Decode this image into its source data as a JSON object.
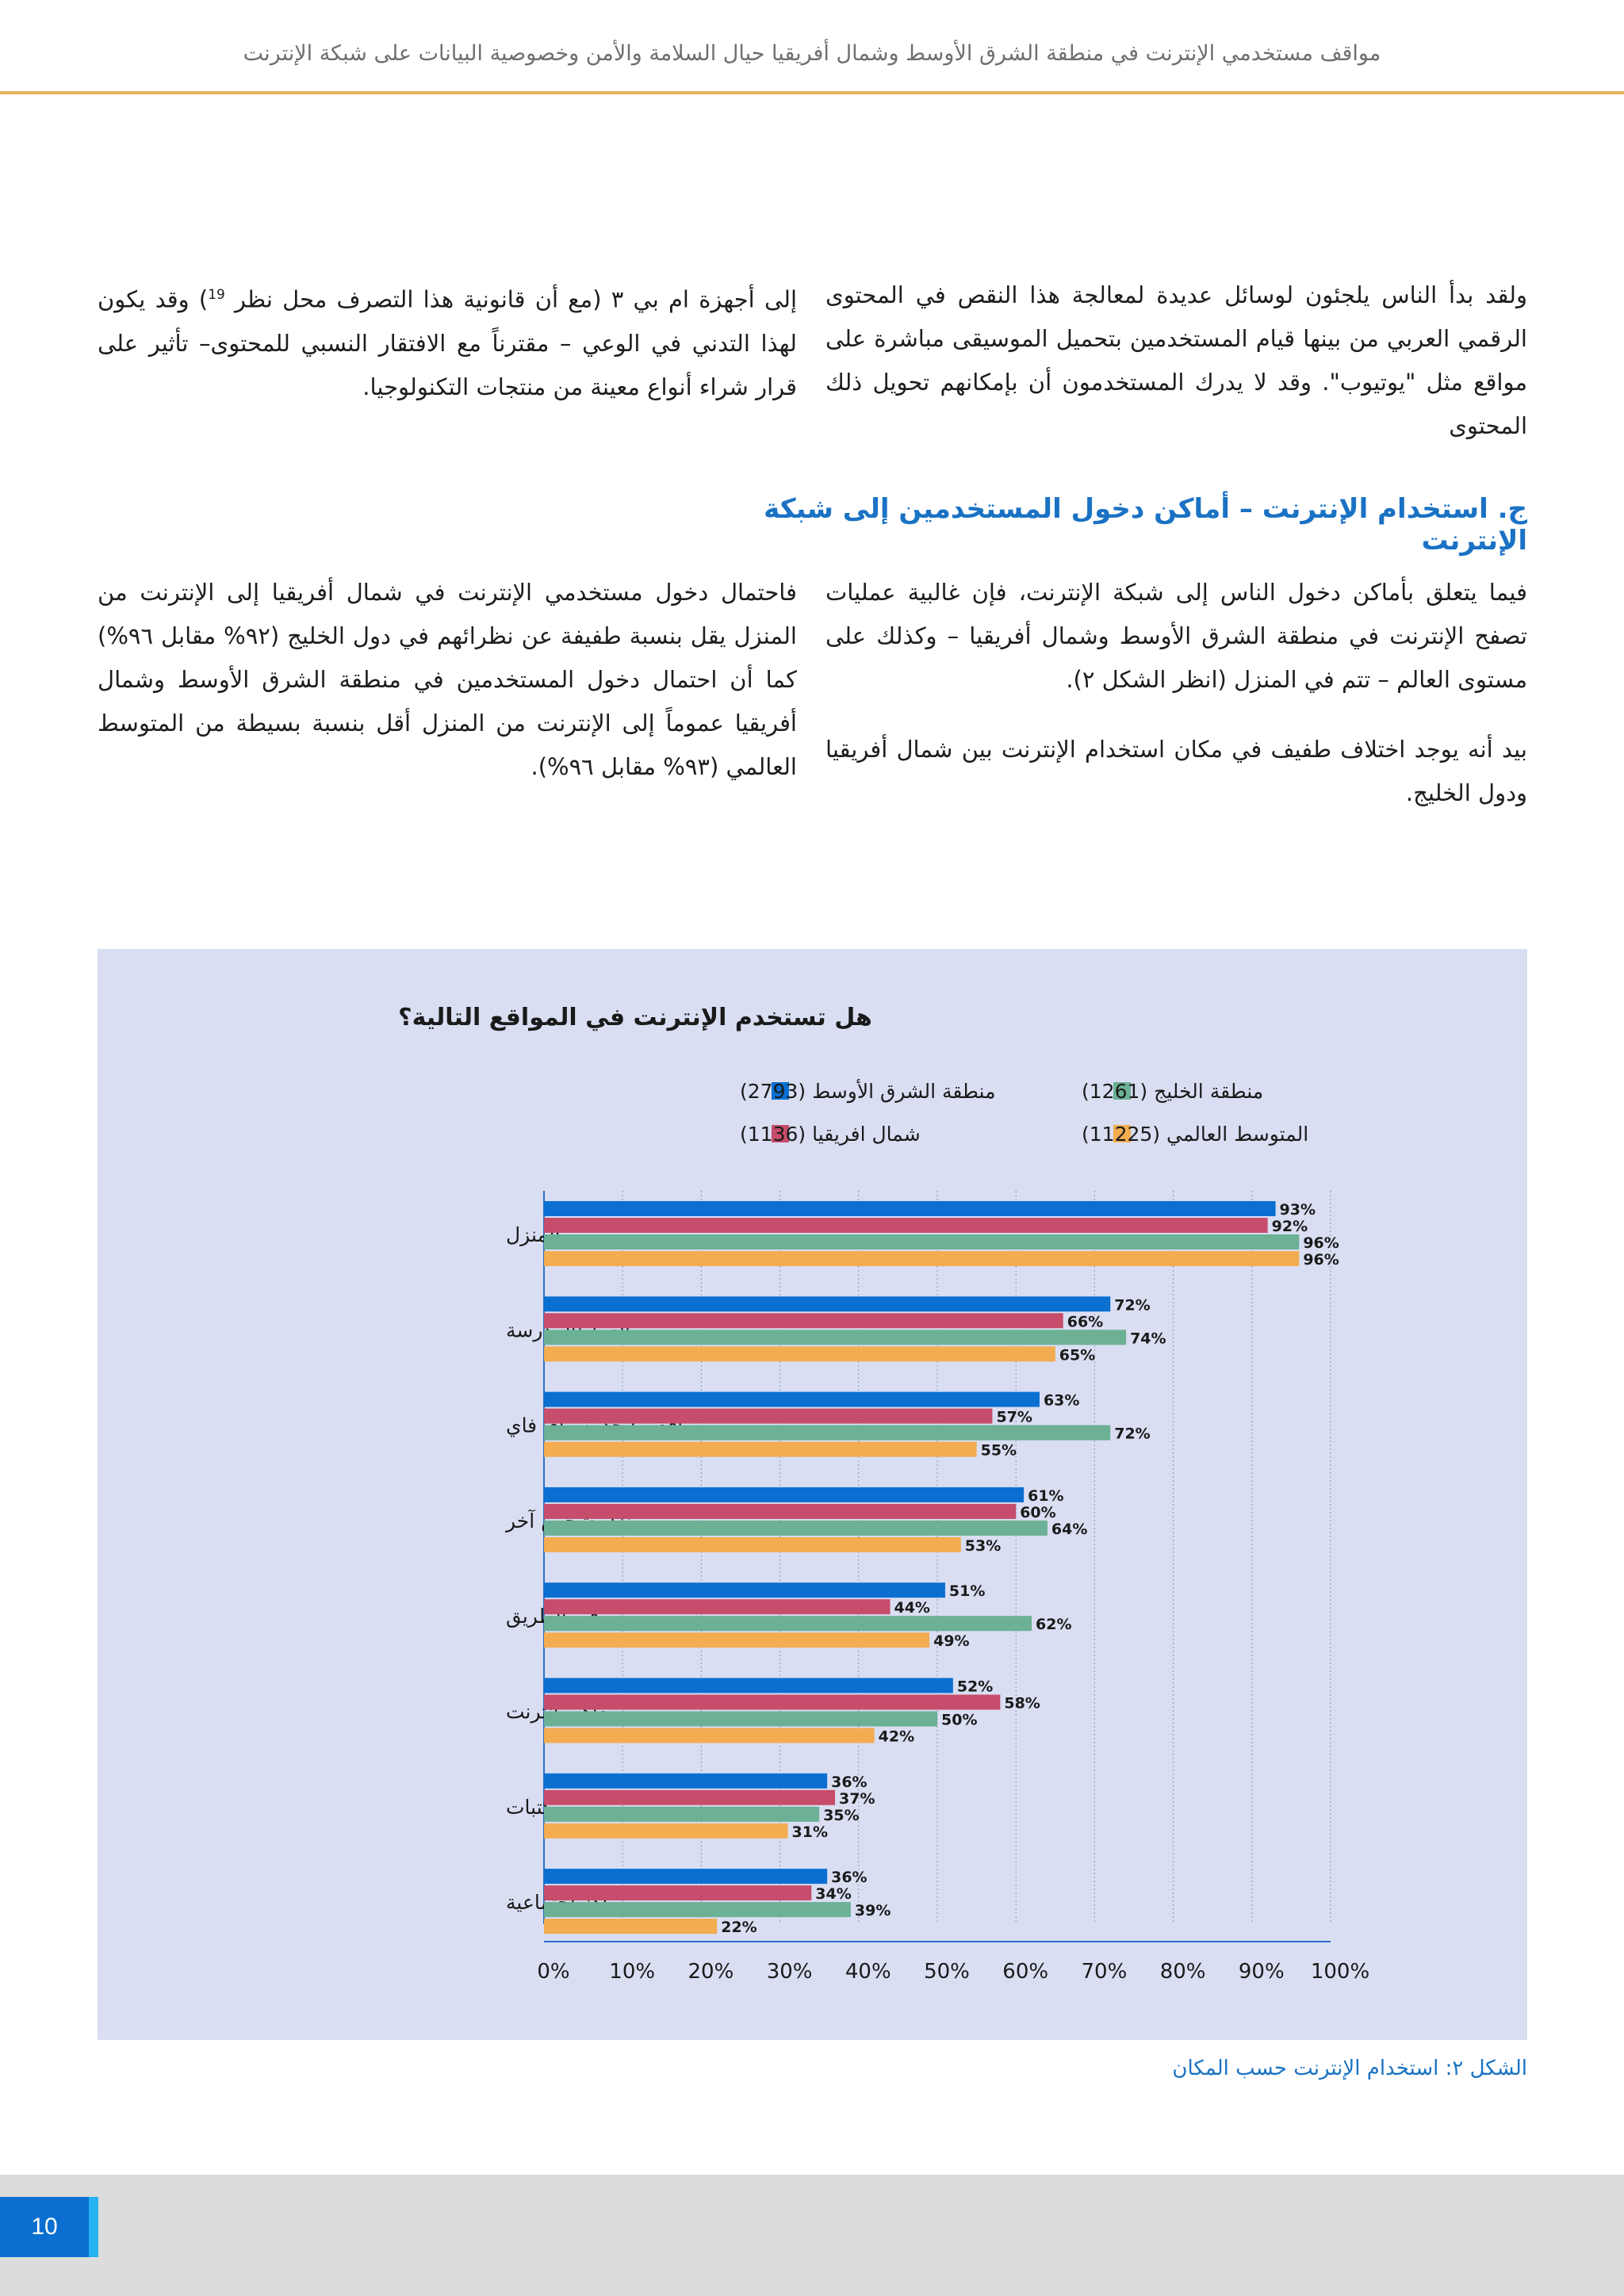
{
  "header": {
    "title": "مواقف مستخدمي الإنترنت في منطقة الشرق الأوسط وشمال أفريقيا حيال السلامة والأمن وخصوصية البيانات على شبكة الإنترنت"
  },
  "intro": {
    "right": "ولقد بدأ الناس يلجئون لوسائل عديدة لمعالجة هذا النقص في المحتوى الرقمي العربي من بينها قيام المستخدمين بتحميل الموسيقى مباشرة على مواقع مثل \"يوتيوب\". وقد لا يدرك المستخدمون أن بإمكانهم تحويل ذلك المحتوى",
    "left_before_note": "إلى أجهزة ام بي ٣ (مع أن قانونية هذا التصرف محل نظر",
    "footnote": "19",
    "left_after_note": ") وقد يكون لهذا التدني في الوعي – مقترناً مع الافتقار النسبي للمحتوى– تأثير على قرار شراء أنواع معينة من منتجات التكنولوجيا."
  },
  "section": {
    "heading": "ج. استخدام الإنترنت – أماكن دخول المستخدمين إلى شبكة الإنترنت",
    "right_p1": "فيما يتعلق بأماكن دخول الناس إلى شبكة الإنترنت، فإن غالبية عمليات تصفح الإنترنت في منطقة الشرق الأوسط وشمال أفريقيا – وكذلك على مستوى العالم – تتم في المنزل (انظر الشكل ٢).",
    "right_p2": "بيد أنه يوجد اختلاف طفيف في مكان استخدام الإنترنت بين شمال أفريقيا ودول الخليج.",
    "left_p": "فاحتمال دخول مستخدمي الإنترنت في شمال أفريقيا إلى الإنترنت من المنزل يقل بنسبة طفيفة عن نظرائهم في دول الخليج (٩٢% مقابل ٩٦%) كما أن احتمال دخول المستخدمين في منطقة الشرق الأوسط وشمال أفريقيا عموماً إلى الإنترنت من المنزل أقل بنسبة بسيطة من المتوسط العالمي (٩٣% مقابل ٩٦%)."
  },
  "colors": {
    "mena": "#0a6fd1",
    "north_africa": "#c64d6b",
    "gulf": "#6cb095",
    "global": "#f3ac4f",
    "accent_blue": "#1a72c4",
    "header_rule": "#e2b45c"
  },
  "chart_data": {
    "type": "bar",
    "orientation": "horizontal",
    "title": "هل تستخدم الإنترنت في المواقع التالية؟",
    "categories": [
      "المنزل",
      "العمل/المدرسة",
      "مواقع بها خدمة واي فاي",
      "منزل شخص آخر",
      "في الطريق",
      "مقاهي انترنت",
      "مكتبات",
      "مراكز اجتماعية"
    ],
    "series": [
      {
        "name": "منطقة الشرق الأوسط (2793)",
        "color_key": "mena",
        "values": [
          93,
          72,
          63,
          61,
          51,
          52,
          36,
          36
        ]
      },
      {
        "name": "شمال افريقيا (1136)",
        "color_key": "north_africa",
        "values": [
          92,
          66,
          57,
          60,
          44,
          58,
          37,
          34
        ]
      },
      {
        "name": "منطقة الخليج (1261)",
        "color_key": "gulf",
        "values": [
          96,
          74,
          72,
          64,
          62,
          50,
          35,
          39
        ]
      },
      {
        "name": "المتوسط العالمي (11225)",
        "color_key": "global",
        "values": [
          96,
          65,
          55,
          53,
          49,
          42,
          31,
          22
        ]
      }
    ],
    "x_ticks": [
      "0%",
      "10%",
      "20%",
      "30%",
      "40%",
      "50%",
      "60%",
      "70%",
      "80%",
      "90%",
      "100%"
    ],
    "xlim": [
      0,
      100
    ],
    "unit": "%",
    "legend": "top",
    "grid": "vertical-dotted"
  },
  "caption": "الشكل ٢: استخدام الإنترنت حسب المكان",
  "footer": {
    "page_number": "10"
  }
}
